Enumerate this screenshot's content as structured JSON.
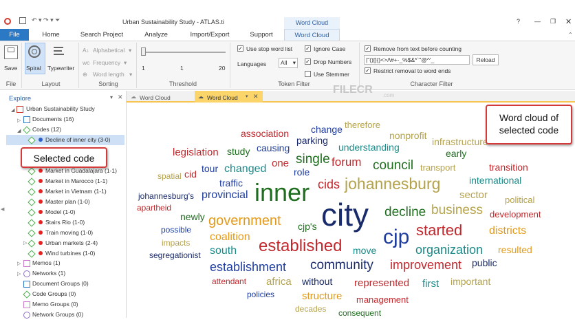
{
  "window": {
    "title": "Urban Sustainability Study - ATLAS.ti",
    "context_tab": "Word Cloud"
  },
  "menu": [
    "File",
    "Home",
    "Search Project",
    "Analyze",
    "Import/Export",
    "Support",
    "Word Cloud"
  ],
  "ribbon": {
    "file": {
      "save": "Save",
      "group": "File"
    },
    "layout": {
      "spiral": "Spiral",
      "typewriter": "Typewriter",
      "group": "Layout"
    },
    "sorting": {
      "alphabetical": "Alphabetical",
      "frequency": "Frequency",
      "word_length": "Word length",
      "group": "Sorting"
    },
    "threshold": {
      "min": "1",
      "mid": "1",
      "max": "20",
      "group": "Threshold"
    },
    "token_filter": {
      "use_stop_word_list": "Use stop word list",
      "ignore_case": "Ignore Case",
      "languages": "Languages",
      "languages_value": "All",
      "drop_numbers": "Drop Numbers",
      "use_stemmer": "Use Stemmer",
      "group": "Token Filter"
    },
    "character_filter": {
      "remove_from_text": "Remove from text before counting",
      "chars_value": "|\"()[]{}<>/\\#+-_%$&*`\"@^'_",
      "reload": "Reload",
      "restrict": "Restrict removal to word ends",
      "group": "Character Filter"
    }
  },
  "explorer": {
    "title": "Explore",
    "items": [
      {
        "label": "Urban Sustainability Study"
      },
      {
        "label": "Documents (16)"
      },
      {
        "label": "Codes (12)"
      },
      {
        "label": "Decline of inner city (3-0)"
      },
      {
        "label": "Market in Guadalajara (1-1)"
      },
      {
        "label": "Market in Marocco (1-1)"
      },
      {
        "label": "Market in Vietnam (1-1)"
      },
      {
        "label": "Master plan (1-0)"
      },
      {
        "label": "Model (1-0)"
      },
      {
        "label": "Stairs Rio (1-0)"
      },
      {
        "label": "Train moving (1-0)"
      },
      {
        "label": "Urban markets (2-4)"
      },
      {
        "label": "Wind turbines (1-0)"
      },
      {
        "label": "Memos (1)"
      },
      {
        "label": "Networks (1)"
      },
      {
        "label": "Document Groups (0)"
      },
      {
        "label": "Code Groups (0)"
      },
      {
        "label": "Memo Groups (0)"
      },
      {
        "label": "Network Groups (0)"
      }
    ]
  },
  "doc_tabs": [
    "Word Cloud",
    "Word Cloud"
  ],
  "watermark": {
    "brand": "FILECR",
    "domain": ".com"
  },
  "callouts": {
    "selected_code": "Selected code",
    "word_cloud_line1": "Word cloud of",
    "word_cloud_line2": "selected code"
  },
  "colors": {
    "red": "#c0282d",
    "blue": "#1f3d9e",
    "teal": "#1b8a8a",
    "green": "#1f6e1f",
    "olive": "#b5a24a",
    "orange": "#e39a1a",
    "navy": "#1a2b6b"
  },
  "words": [
    "association",
    "change",
    "therefore",
    "parking",
    "nonprofit",
    "infrastructure",
    "legislation",
    "study",
    "causing",
    "understanding",
    "early",
    "cid",
    "one",
    "single",
    "forum",
    "council",
    "transport",
    "transition",
    "spatial",
    "tour",
    "changed",
    "role",
    "international",
    "traffic",
    "cids",
    "johannesburg",
    "sector",
    "johannesburg's",
    "provincial",
    "inner",
    "political",
    "apartheid",
    "decline",
    "business",
    "development",
    "newly",
    "government",
    "cjp's",
    "started",
    "districts",
    "possible",
    "city",
    "coalition",
    "cjp",
    "impacts",
    "established",
    "organization",
    "resulted",
    "segregationist",
    "south",
    "move",
    "community",
    "improvement",
    "public",
    "establishment",
    "attendant",
    "africa",
    "without",
    "represented",
    "first",
    "important",
    "policies",
    "structure",
    "management",
    "decades",
    "consequent"
  ]
}
